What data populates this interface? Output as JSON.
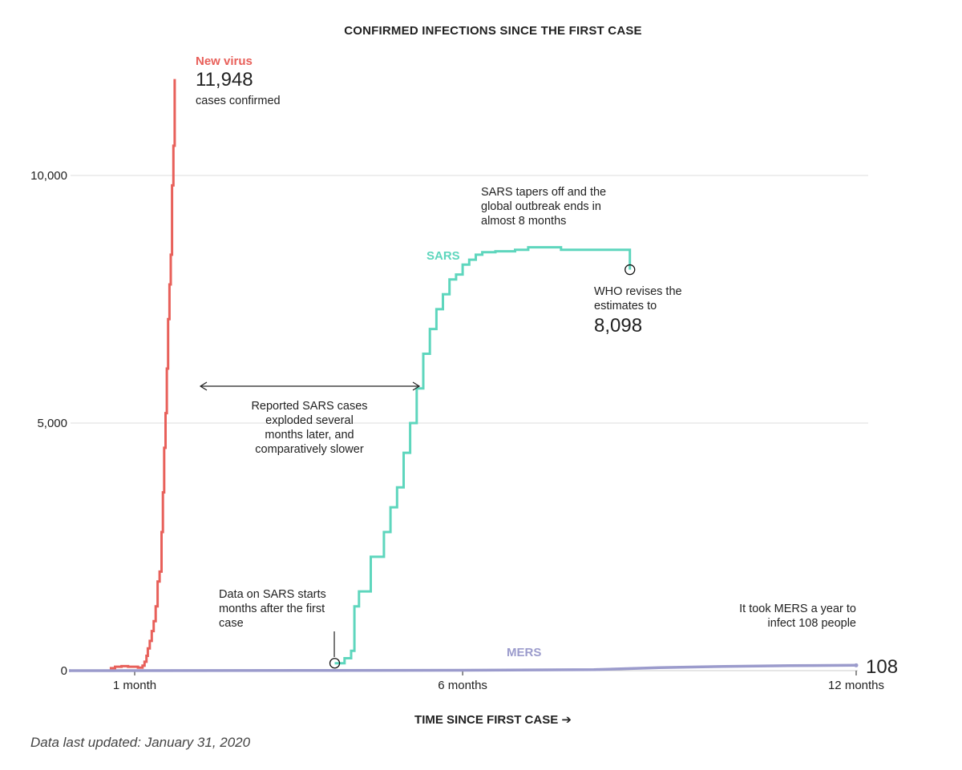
{
  "chart_data": {
    "type": "line",
    "title": "CONFIRMED INFECTIONS SINCE THE FIRST CASE",
    "xlabel": "TIME SINCE FIRST CASE",
    "xlabel_arrow": "➔",
    "ylabel": "",
    "x_unit": "months since first case",
    "xlim": [
      0,
      12.2
    ],
    "ylim": [
      0,
      12000
    ],
    "grid": true,
    "x_ticks": [
      {
        "value": 1,
        "label": "1 month"
      },
      {
        "value": 6,
        "label": "6 months"
      },
      {
        "value": 12,
        "label": "12 months"
      }
    ],
    "y_ticks": [
      {
        "value": 0,
        "label": "0"
      },
      {
        "value": 5000,
        "label": "5,000"
      },
      {
        "value": 10000,
        "label": "10,000"
      }
    ],
    "series": [
      {
        "name": "New virus",
        "color": "#e8605a",
        "x": [
          0.62,
          0.7,
          0.8,
          0.9,
          1.05,
          1.12,
          1.15,
          1.18,
          1.2,
          1.23,
          1.26,
          1.29,
          1.32,
          1.35,
          1.38,
          1.41,
          1.43,
          1.45,
          1.47,
          1.49,
          1.51,
          1.53,
          1.55,
          1.57,
          1.59,
          1.61
        ],
        "y": [
          50,
          80,
          90,
          80,
          60,
          100,
          180,
          300,
          450,
          600,
          800,
          1000,
          1300,
          1800,
          2000,
          2800,
          3600,
          4500,
          5200,
          6100,
          7100,
          7800,
          8400,
          9800,
          10600,
          11948
        ]
      },
      {
        "name": "SARS",
        "color": "#5ed6bd",
        "x": [
          4.05,
          4.2,
          4.3,
          4.35,
          4.42,
          4.6,
          4.8,
          4.9,
          5.0,
          5.1,
          5.2,
          5.3,
          5.4,
          5.5,
          5.6,
          5.7,
          5.8,
          5.9,
          6.0,
          6.1,
          6.2,
          6.3,
          6.5,
          6.8,
          7.0,
          7.5,
          8.0,
          8.5,
          8.55
        ],
        "y": [
          150,
          250,
          400,
          1300,
          1600,
          2300,
          2800,
          3300,
          3700,
          4400,
          5000,
          5700,
          6400,
          6900,
          7300,
          7600,
          7900,
          8000,
          8200,
          8300,
          8400,
          8450,
          8470,
          8500,
          8550,
          8500,
          8500,
          8500,
          8098
        ]
      },
      {
        "name": "MERS",
        "color": "#9b9bcc",
        "x": [
          0,
          2,
          4,
          6,
          8,
          9,
          10,
          11,
          12
        ],
        "y": [
          0,
          2,
          5,
          8,
          20,
          60,
          85,
          100,
          108
        ]
      }
    ],
    "annotations": {
      "new_virus": {
        "series": "New virus",
        "value": "11,948",
        "text": "cases confirmed"
      },
      "sars_tapers": {
        "lines": [
          "SARS tapers off and the",
          "global outbreak ends in",
          "almost 8 months"
        ]
      },
      "who_revises": {
        "lines": [
          "WHO revises the",
          "estimates to"
        ],
        "value": "8,098"
      },
      "reported_sars": {
        "lines": [
          "Reported SARS cases",
          "exploded several",
          "months later, and",
          "comparatively slower"
        ]
      },
      "data_on_sars": {
        "lines": [
          "Data on SARS starts",
          "months after the first",
          "case"
        ]
      },
      "mers_year": {
        "lines": [
          "It took MERS a year to",
          "infect 108 people"
        ]
      },
      "mers_end_value": "108"
    }
  },
  "footer": {
    "text": "Data last updated: January 31, 2020"
  }
}
